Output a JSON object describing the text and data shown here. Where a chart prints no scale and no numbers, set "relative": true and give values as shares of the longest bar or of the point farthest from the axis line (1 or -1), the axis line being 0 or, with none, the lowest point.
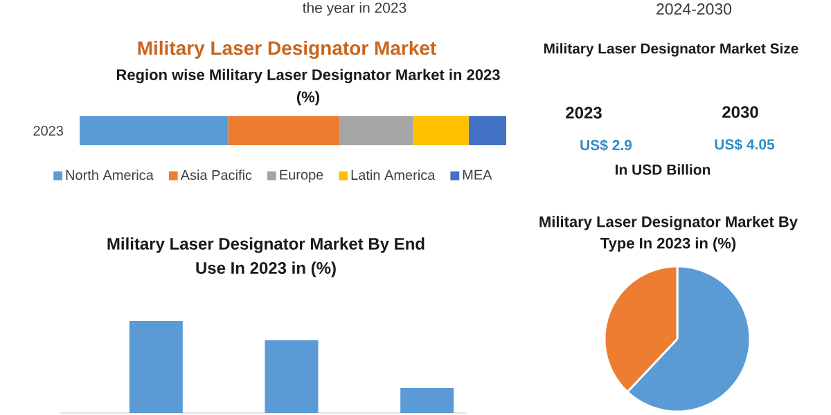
{
  "chart_data": [
    {
      "type": "other",
      "annotations": [
        "the year in 2023",
        "2024-2030"
      ]
    },
    {
      "type": "bar",
      "orientation": "horizontal",
      "stacked": true,
      "relative": true,
      "title": "Military Laser Designator Market",
      "subtitle": "Region wise Military Laser Designator Market in 2023 (%)",
      "categories": [
        "2023"
      ],
      "series": [
        {
          "name": "North America",
          "color": "#5b9bd5",
          "values": [
            0.348
          ]
        },
        {
          "name": "Asia Pacific",
          "color": "#ed7d31",
          "values": [
            0.261
          ]
        },
        {
          "name": "Europe",
          "color": "#a5a5a5",
          "values": [
            0.173
          ]
        },
        {
          "name": "Latin America",
          "color": "#ffc000",
          "values": [
            0.13
          ]
        },
        {
          "name": "MEA",
          "color": "#4472c4",
          "values": [
            0.088
          ]
        }
      ],
      "legend": "bottom"
    },
    {
      "type": "other",
      "title": "Military Laser Designator Market Size",
      "categories": [
        "2023",
        "2030"
      ],
      "value_labels": [
        "US$ 2.9",
        "US$ 4.05"
      ],
      "annotations": [
        "In USD Billion"
      ]
    },
    {
      "type": "bar",
      "relative": true,
      "title": "Military Laser Designator Market By End Use In 2023 in (%)",
      "categories": [
        null,
        null,
        null
      ],
      "values": [
        1,
        0.79,
        0.27
      ],
      "color": "#5b9bd5"
    },
    {
      "type": "pie",
      "title": "Military Laser Designator Market By Type In 2023 in (%)",
      "categories": [
        null,
        null
      ],
      "values": [
        62,
        38
      ],
      "colors": [
        "#5b9bd5",
        "#ed7d31"
      ]
    }
  ]
}
